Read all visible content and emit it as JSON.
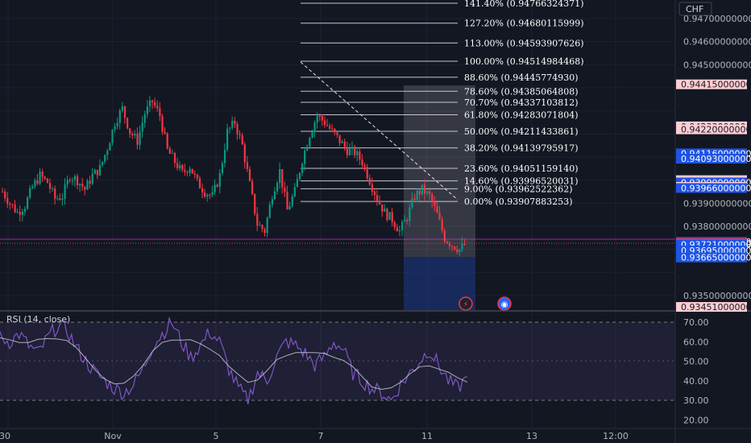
{
  "currency": "CHF",
  "price_axis": {
    "ticks": [
      "0.94700000000",
      "0.94600000000",
      "0.94500000000",
      "0.93900000000",
      "0.93800000000",
      "0.93500000000"
    ]
  },
  "price_tags": [
    {
      "value": "0.94415000000",
      "bg": "#ffcdd2",
      "fg": "#131722"
    },
    {
      "value": "0.94233000000",
      "bg": "#ffcdd2",
      "fg": "#131722"
    },
    {
      "value": "0.94220000000",
      "bg": "#ffcdd2",
      "fg": "#131722"
    },
    {
      "value": "0.94116000000",
      "bg": "#1e53e5",
      "fg": "#ffffff"
    },
    {
      "value": "0.94093000000",
      "bg": "#1e53e5",
      "fg": "#ffffff"
    },
    {
      "value": "0.94000000000",
      "bg": "#ffcdd2",
      "fg": "#131722"
    },
    {
      "value": "0.93995000000",
      "bg": "#1e53e5",
      "fg": "#ffffff"
    },
    {
      "value": "0.93995000000",
      "bg": "#ffcdd2",
      "fg": "#131722"
    },
    {
      "value": "0.93990000000",
      "bg": "#1e53e5",
      "fg": "#ffffff"
    },
    {
      "value": "0.93971000000",
      "bg": "#ffcdd2",
      "fg": "#131722"
    },
    {
      "value": "0.93966000000",
      "bg": "#1e53e5",
      "fg": "#ffffff"
    },
    {
      "value": "0.93733000000",
      "bg": "#1e53e5",
      "fg": "#ffffff"
    },
    {
      "value": "0.93727000000",
      "bg": "#f23645",
      "fg": "#ffffff"
    },
    {
      "value": "0.93721000000",
      "bg": "#1e53e5",
      "fg": "#ffffff"
    },
    {
      "value": "0.93695000000",
      "bg": "#1e53e5",
      "fg": "#ffffff"
    },
    {
      "value": "0.93665000000",
      "bg": "#1e53e5",
      "fg": "#ffffff"
    },
    {
      "value": "0.93451000000",
      "bg": "#ffcdd2",
      "fg": "#131722"
    }
  ],
  "fib_levels": [
    {
      "label": "141.40% (0.94766324371)"
    },
    {
      "label": "127.20% (0.94680115999)"
    },
    {
      "label": "113.00% (0.94593907626)"
    },
    {
      "label": "100.00% (0.94514984468)"
    },
    {
      "label": "88.60% (0.94445774930)"
    },
    {
      "label": "78.60% (0.94385064808)"
    },
    {
      "label": "70.70% (0.94337103812)"
    },
    {
      "label": "61.80% (0.94283071804)"
    },
    {
      "label": "50.00% (0.94211433861)"
    },
    {
      "label": "38.20% (0.94139795917)"
    },
    {
      "label": "23.60% (0.94051159140)"
    },
    {
      "label": "14.60% (0.93996520031)"
    },
    {
      "label": "9.00% (0.93962522362)"
    },
    {
      "label": "0.00% (0.93907883253)"
    }
  ],
  "time_axis": [
    "30",
    "Nov",
    "5",
    "7",
    "11",
    "13",
    "12:00"
  ],
  "rsi": {
    "title": "RSI (14, close)",
    "ticks": [
      "70.00",
      "60.00",
      "50.00",
      "40.00",
      "30.00",
      "20.00"
    ],
    "line_color": "#7e57c2",
    "ma_color": "#d1d4dc"
  },
  "colors": {
    "up": "#089981",
    "down": "#f23645",
    "bg": "#131722",
    "fib_line": "#e0e3eb"
  },
  "chart_data": [
    {
      "type": "candlestick",
      "title": "",
      "ylabel": "CHF",
      "ylim": [
        0.9343,
        0.9472
      ],
      "x_ticks": [
        "30",
        "Nov",
        "5",
        "7",
        "11",
        "13",
        "12:00"
      ],
      "close_path": [
        [
          0,
          0.9395
        ],
        [
          3,
          0.939
        ],
        [
          6,
          0.9386
        ],
        [
          9,
          0.9389
        ],
        [
          12,
          0.9397
        ],
        [
          15,
          0.9402
        ],
        [
          18,
          0.9399
        ],
        [
          21,
          0.9392
        ],
        [
          24,
          0.9393
        ],
        [
          27,
          0.9402
        ],
        [
          30,
          0.94
        ],
        [
          33,
          0.9396
        ],
        [
          36,
          0.9402
        ],
        [
          39,
          0.9405
        ],
        [
          42,
          0.9414
        ],
        [
          45,
          0.9425
        ],
        [
          48,
          0.9431
        ],
        [
          51,
          0.9421
        ],
        [
          54,
          0.9417
        ],
        [
          57,
          0.9429
        ],
        [
          60,
          0.9434
        ],
        [
          63,
          0.9428
        ],
        [
          66,
          0.9413
        ],
        [
          69,
          0.9408
        ],
        [
          72,
          0.9403
        ],
        [
          75,
          0.9406
        ],
        [
          78,
          0.9399
        ],
        [
          81,
          0.9395
        ],
        [
          84,
          0.9393
        ],
        [
          87,
          0.9402
        ],
        [
          90,
          0.9421
        ],
        [
          93,
          0.9425
        ],
        [
          96,
          0.9415
        ],
        [
          99,
          0.9398
        ],
        [
          102,
          0.9381
        ],
        [
          105,
          0.9378
        ],
        [
          108,
          0.9394
        ],
        [
          111,
          0.9404
        ],
        [
          114,
          0.9387
        ],
        [
          117,
          0.9395
        ],
        [
          120,
          0.9409
        ],
        [
          123,
          0.942
        ],
        [
          126,
          0.9428
        ],
        [
          129,
          0.9425
        ],
        [
          132,
          0.9421
        ],
        [
          135,
          0.9417
        ],
        [
          138,
          0.9413
        ],
        [
          141,
          0.9412
        ],
        [
          144,
          0.9408
        ],
        [
          147,
          0.94
        ],
        [
          150,
          0.9392
        ],
        [
          153,
          0.9386
        ],
        [
          156,
          0.9383
        ],
        [
          159,
          0.9378
        ],
        [
          162,
          0.9384
        ],
        [
          165,
          0.9393
        ],
        [
          168,
          0.9396
        ],
        [
          171,
          0.9393
        ],
        [
          174,
          0.9385
        ],
        [
          177,
          0.9375
        ],
        [
          180,
          0.9372
        ],
        [
          183,
          0.937
        ],
        [
          186,
          0.9373
        ]
      ]
    },
    {
      "type": "line",
      "title": "RSI (14, close)",
      "ylim": [
        20,
        70
      ],
      "series": [
        {
          "values": [
            62,
            60,
            64,
            58,
            54,
            62,
            68,
            66,
            57,
            50,
            44,
            40,
            36,
            34,
            38,
            46,
            58,
            64,
            70,
            60,
            52,
            58,
            65,
            60,
            46,
            36,
            30,
            44,
            40,
            52,
            60,
            58,
            54,
            48,
            52,
            60,
            56,
            44,
            40,
            36,
            34,
            30,
            38,
            44,
            50,
            56,
            48,
            40,
            36,
            42
          ]
        }
      ]
    }
  ]
}
